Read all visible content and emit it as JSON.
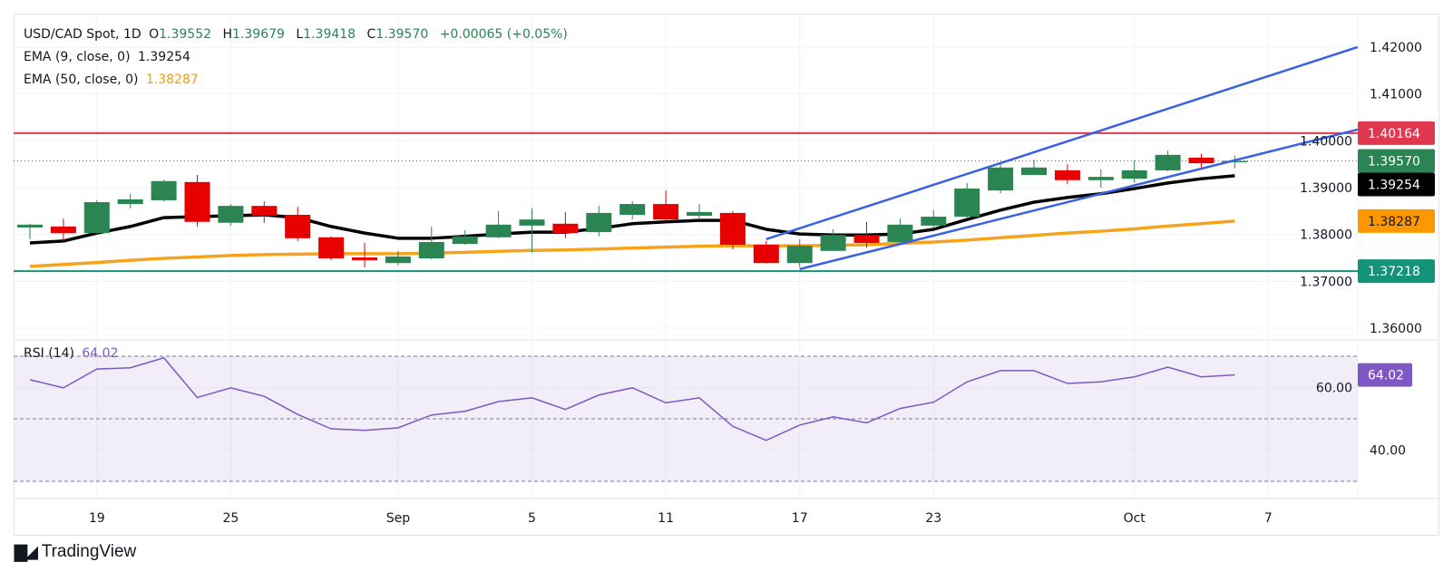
{
  "legend": {
    "symbol": "USD/CAD Spot, 1D",
    "open_label": "O",
    "open": "1.39552",
    "high_label": "H",
    "high": "1.39679",
    "low_label": "L",
    "low": "1.39418",
    "close_label": "C",
    "close": "1.39570",
    "change": "+0.00065 (+0.05%)",
    "ema9_label": "EMA (9, close, 0)",
    "ema9_value": "1.39254",
    "ema50_label": "EMA (50, close, 0)",
    "ema50_value": "1.38287",
    "rsi_label": "RSI (14)",
    "rsi_value": "64.02"
  },
  "branding": {
    "name": "TradingView",
    "logo_text": "TV"
  },
  "colors": {
    "up": "#2a8553",
    "down": "#e60000",
    "ema9": "#000000",
    "ema50": "#f7a21b",
    "channel": "#3a62e0",
    "resistance": "#e0394f",
    "support": "#13937a",
    "rsi": "#7e57c2",
    "last_price": "#2a8553"
  },
  "chart_data": [
    {
      "type": "candlestick",
      "title": "USD/CAD Spot, 1D",
      "ylim": [
        1.355,
        1.4265
      ],
      "y_ticks": [
        "1.42000",
        "1.41000",
        "1.40000",
        "1.39000",
        "1.38000",
        "1.37000",
        "1.36000"
      ],
      "x_ticks": [
        {
          "index": 2,
          "label": "19"
        },
        {
          "index": 6,
          "label": "25"
        },
        {
          "index": 11,
          "label": "Sep"
        },
        {
          "index": 15,
          "label": "5"
        },
        {
          "index": 19,
          "label": "11"
        },
        {
          "index": 23,
          "label": "17"
        },
        {
          "index": 27,
          "label": "23"
        },
        {
          "index": 33,
          "label": "Oct"
        },
        {
          "index": 37,
          "label": "7"
        }
      ],
      "grid": true,
      "candles": [
        [
          1.3815,
          1.3823,
          1.379,
          1.3821
        ],
        [
          1.3817,
          1.3834,
          1.3786,
          1.3803
        ],
        [
          1.3803,
          1.3873,
          1.3801,
          1.3869
        ],
        [
          1.3865,
          1.3887,
          1.3856,
          1.3875
        ],
        [
          1.3873,
          1.3917,
          1.3871,
          1.3914
        ],
        [
          1.3912,
          1.3927,
          1.3817,
          1.3827
        ],
        [
          1.3825,
          1.3865,
          1.3819,
          1.3861
        ],
        [
          1.3861,
          1.3871,
          1.3825,
          1.384
        ],
        [
          1.3842,
          1.3859,
          1.3786,
          1.3792
        ],
        [
          1.3794,
          1.3796,
          1.3745,
          1.3749
        ],
        [
          1.3751,
          1.3782,
          1.373,
          1.3745
        ],
        [
          1.3739,
          1.3765,
          1.3734,
          1.3753
        ],
        [
          1.3749,
          1.3817,
          1.3747,
          1.3784
        ],
        [
          1.378,
          1.3809,
          1.3778,
          1.3796
        ],
        [
          1.3794,
          1.385,
          1.3792,
          1.3821
        ],
        [
          1.3819,
          1.3856,
          1.3761,
          1.3832
        ],
        [
          1.3823,
          1.3848,
          1.3792,
          1.3803
        ],
        [
          1.3805,
          1.3861,
          1.3796,
          1.3846
        ],
        [
          1.3842,
          1.3871,
          1.3832,
          1.3865
        ],
        [
          1.3865,
          1.3894,
          1.383,
          1.3832
        ],
        [
          1.384,
          1.3865,
          1.3832,
          1.3848
        ],
        [
          1.3846,
          1.385,
          1.3768,
          1.3778
        ],
        [
          1.3778,
          1.3786,
          1.3738,
          1.3739
        ],
        [
          1.3739,
          1.379,
          1.373,
          1.3776
        ],
        [
          1.3765,
          1.3811,
          1.3765,
          1.3799
        ],
        [
          1.3799,
          1.3827,
          1.3772,
          1.3782
        ],
        [
          1.3784,
          1.3834,
          1.3784,
          1.3821
        ],
        [
          1.3819,
          1.3852,
          1.3813,
          1.3838
        ],
        [
          1.3838,
          1.391,
          1.3834,
          1.3898
        ],
        [
          1.3894,
          1.3952,
          1.3888,
          1.3943
        ],
        [
          1.3927,
          1.396,
          1.3927,
          1.3943
        ],
        [
          1.3937,
          1.395,
          1.3908,
          1.3916
        ],
        [
          1.3916,
          1.3939,
          1.39,
          1.3923
        ],
        [
          1.3919,
          1.3958,
          1.391,
          1.3937
        ],
        [
          1.3937,
          1.3979,
          1.3935,
          1.397
        ],
        [
          1.3964,
          1.3972,
          1.3943,
          1.3952
        ],
        [
          1.39552,
          1.39679,
          1.39418,
          1.3957
        ]
      ],
      "series": [
        {
          "name": "EMA (9, close, 0)",
          "values": [
            1.3782,
            1.3786,
            1.3803,
            1.3817,
            1.3836,
            1.3838,
            1.384,
            1.3842,
            1.3836,
            1.3817,
            1.3803,
            1.3792,
            1.3792,
            1.3796,
            1.3801,
            1.3805,
            1.3805,
            1.3813,
            1.3823,
            1.3827,
            1.383,
            1.383,
            1.3811,
            1.3801,
            1.3799,
            1.3799,
            1.3801,
            1.3811,
            1.3832,
            1.3852,
            1.3869,
            1.3879,
            1.3887,
            1.3898,
            1.391,
            1.3919,
            1.39254
          ]
        },
        {
          "name": "EMA (50, close, 0)",
          "values": [
            1.3732,
            1.3736,
            1.374,
            1.3745,
            1.3749,
            1.3752,
            1.3755,
            1.3757,
            1.3758,
            1.3759,
            1.3759,
            1.3759,
            1.376,
            1.3762,
            1.3764,
            1.3766,
            1.3767,
            1.3769,
            1.3771,
            1.3773,
            1.3775,
            1.3776,
            1.3776,
            1.3776,
            1.3777,
            1.3778,
            1.3781,
            1.3784,
            1.3788,
            1.3793,
            1.3798,
            1.3803,
            1.3807,
            1.3812,
            1.3818,
            1.3823,
            1.38287
          ]
        }
      ],
      "horizontal_lines": [
        {
          "value": 1.40164,
          "label": "1.40164",
          "color": "#e0394f"
        },
        {
          "value": 1.37218,
          "label": "1.37218",
          "color": "#13937a"
        }
      ],
      "trendlines": [
        {
          "from": [
            22,
            1.379
          ],
          "to": [
            39.67,
            1.42
          ]
        },
        {
          "from": [
            23,
            1.3726
          ],
          "to": [
            39.67,
            1.4024
          ]
        }
      ],
      "price_badges": [
        {
          "value": 1.40164,
          "label": "1.40164",
          "bg": "#e0394f",
          "fg": "#ffffff"
        },
        {
          "value": 1.3957,
          "label": "1.39570",
          "bg": "#2a8553",
          "fg": "#ffffff"
        },
        {
          "value": 1.39254,
          "label": "1.39254",
          "bg": "#000000",
          "fg": "#ffffff"
        },
        {
          "value": 1.38287,
          "label": "1.38287",
          "bg": "#ff9800",
          "fg": "#131722"
        },
        {
          "value": 1.37218,
          "label": "1.37218",
          "bg": "#13937a",
          "fg": "#ffffff"
        }
      ],
      "last_price": 1.3957
    },
    {
      "type": "line",
      "title": "RSI (14)",
      "ylim": [
        26,
        76
      ],
      "y_ticks": [
        "60.00",
        "40.00"
      ],
      "bands": [
        70,
        50,
        30
      ],
      "series": [
        {
          "name": "RSI (14)",
          "values": [
            62.5,
            59.9,
            65.9,
            66.3,
            69.5,
            56.8,
            59.9,
            57.2,
            51.4,
            46.8,
            46.3,
            47.1,
            51.2,
            52.4,
            55.5,
            56.7,
            53.0,
            57.6,
            59.9,
            55.1,
            56.7,
            47.6,
            43.1,
            48.0,
            50.6,
            48.7,
            53.3,
            55.3,
            61.8,
            65.4,
            65.4,
            61.3,
            61.8,
            63.4,
            66.5,
            63.4,
            64.02
          ]
        }
      ],
      "last_value_label": "64.02"
    }
  ]
}
